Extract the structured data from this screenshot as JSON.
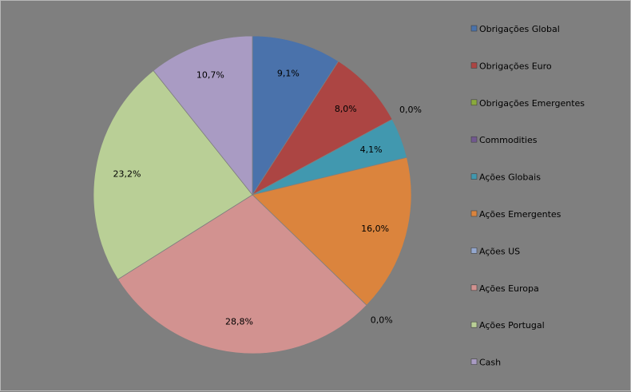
{
  "chart_data": {
    "type": "pie",
    "title": "",
    "legend_position": "right",
    "slices": [
      {
        "name": "Obrigações Global",
        "value": 9.1,
        "label": "9,1%",
        "color": "#4a72ab"
      },
      {
        "name": "Obrigações Euro",
        "value": 8.0,
        "label": "8,0%",
        "color": "#ac4543"
      },
      {
        "name": "Obrigações Emergentes",
        "value": 0.0,
        "label": "0,0%",
        "color": "#8aaa3c"
      },
      {
        "name": "Commodities",
        "value": 0.0,
        "label": "",
        "color": "#71588f"
      },
      {
        "name": "Ações Globais",
        "value": 4.1,
        "label": "4,1%",
        "color": "#4198af"
      },
      {
        "name": "Ações Emergentes",
        "value": 16.0,
        "label": "16,0%",
        "color": "#db843d"
      },
      {
        "name": "Ações US",
        "value": 0.0,
        "label": "0,0%",
        "color": "#94a8cf"
      },
      {
        "name": "Ações Europa",
        "value": 28.8,
        "label": "28,8%",
        "color": "#d29290"
      },
      {
        "name": "Ações Portugal",
        "value": 23.2,
        "label": "23,2%",
        "color": "#b9cf96"
      },
      {
        "name": "Cash",
        "value": 10.7,
        "label": "10,7%",
        "color": "#a99bc3"
      }
    ]
  }
}
